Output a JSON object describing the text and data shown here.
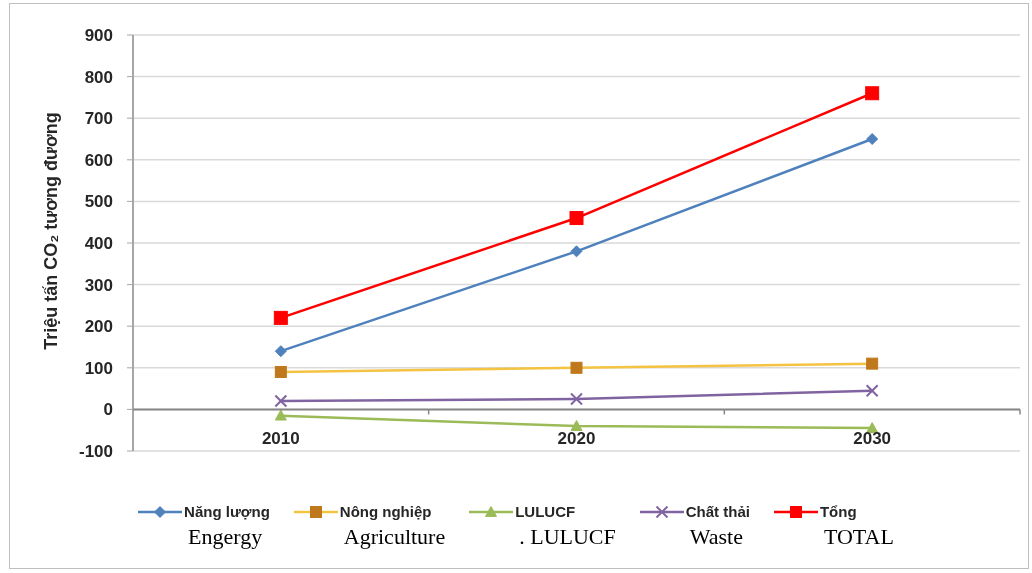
{
  "chart_data": {
    "type": "line",
    "ylabel": "Triệu tấn CO₂ tương đương",
    "categories": [
      "2010",
      "2020",
      "2030"
    ],
    "series": [
      {
        "name": "Năng lượng",
        "color": "#4f81bd",
        "marker": "diamond",
        "values": [
          140,
          380,
          650
        ]
      },
      {
        "name": "Nông nghiệp",
        "color": "#f5c342",
        "colors": [
          "#c0781c",
          "#c0781c",
          "#c0781c"
        ],
        "marker": "square",
        "values": [
          90,
          100,
          110
        ]
      },
      {
        "name": "LULUCF",
        "color": "#9bbb59",
        "marker": "triangle",
        "values": [
          -15,
          -40,
          -45
        ]
      },
      {
        "name": "Chất thải",
        "color": "#8064a2",
        "marker": "cross",
        "values": [
          20,
          25,
          45
        ]
      },
      {
        "name": "Tổng",
        "color": "#ff0000",
        "marker": "square",
        "values": [
          220,
          460,
          760
        ]
      }
    ],
    "ylim": [
      -100,
      900
    ],
    "yticks": [
      -100,
      0,
      100,
      200,
      300,
      400,
      500,
      600,
      700,
      800,
      900
    ],
    "grid": "y",
    "legend": "bottom",
    "annotations": [
      "Engergy",
      "Agriculture",
      ". LULUCF",
      "Waste",
      "TOTAL"
    ]
  }
}
